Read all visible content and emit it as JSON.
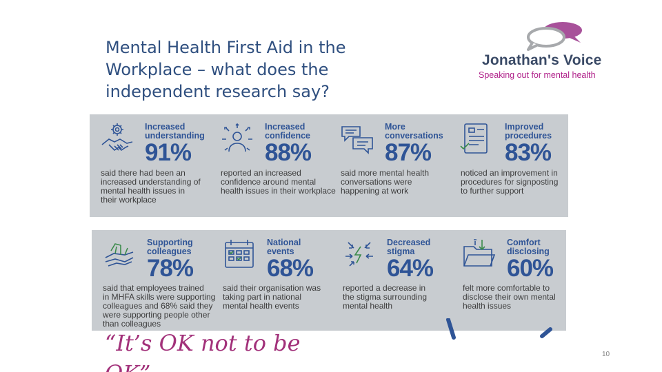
{
  "slide": {
    "title_lines": [
      "Mental Health First Aid in the",
      "Workplace – what does the",
      "independent research say?"
    ],
    "logo": {
      "name": "Jonathan's Voice",
      "tagline": "Speaking out for mental health"
    },
    "quote": "“It’s OK not to be\nOK”",
    "page_number": "10",
    "colors": {
      "title": "#2f4f7f",
      "stat_blue": "#2f5496",
      "quote_magenta": "#a2317a",
      "panel_grey": "#c8ccd0"
    }
  },
  "stats_row1": [
    {
      "icon": "gear-handshake-icon",
      "heading": "Increased\nunderstanding",
      "percent": "91%",
      "description": "said there had been an\nincreased understanding of\nmental health issues in\ntheir workplace"
    },
    {
      "icon": "confident-person-icon",
      "heading": "Increased\nconfidence",
      "percent": "88%",
      "description": "reported an increased\nconfidence around mental\nhealth issues in their workplace"
    },
    {
      "icon": "speech-bubbles-icon",
      "heading": "More\nconversations",
      "percent": "87%",
      "description": "said more mental health\nconversations were\nhappening at work"
    },
    {
      "icon": "document-checklist-icon",
      "heading": "Improved\nprocedures",
      "percent": "83%",
      "description": "noticed an improvement in\nprocedures for signposting\nto further support"
    }
  ],
  "stats_row2": [
    {
      "icon": "stacked-hands-icon",
      "heading": "Supporting\ncolleagues",
      "percent": "78%",
      "description": "said that employees trained\nin MHFA skills were supporting\ncolleagues and 68% said they\nwere supporting people other\nthan colleagues"
    },
    {
      "icon": "calendar-icon",
      "heading": "National\nevents",
      "percent": "68%",
      "description": "said their organisation was\ntaking part in national\nmental health events"
    },
    {
      "icon": "lightning-arrows-icon",
      "heading": "Decreased\nstigma",
      "percent": "64%",
      "description": "reported a decrease in\nthe stigma surrounding\nmental health"
    },
    {
      "icon": "open-folder-icon",
      "heading": "Comfort\ndisclosing",
      "percent": "60%",
      "description": "felt more comfortable to\ndisclose their own mental\nhealth issues"
    }
  ]
}
